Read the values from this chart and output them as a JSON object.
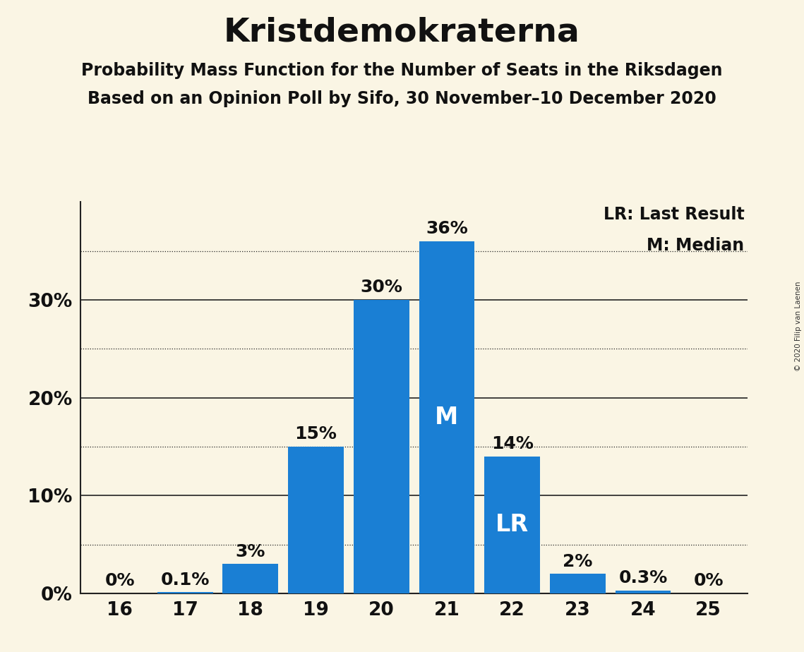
{
  "title": "Kristdemokraterna",
  "subtitle1": "Probability Mass Function for the Number of Seats in the Riksdagen",
  "subtitle2": "Based on an Opinion Poll by Sifo, 30 November–10 December 2020",
  "copyright": "© 2020 Filip van Laenen",
  "seats": [
    16,
    17,
    18,
    19,
    20,
    21,
    22,
    23,
    24,
    25
  ],
  "probabilities": [
    0.0,
    0.1,
    3.0,
    15.0,
    30.0,
    36.0,
    14.0,
    2.0,
    0.3,
    0.0
  ],
  "labels": [
    "0%",
    "0.1%",
    "3%",
    "15%",
    "30%",
    "36%",
    "14%",
    "2%",
    "0.3%",
    "0%"
  ],
  "bar_color": "#1a7fd4",
  "background_color": "#faf5e4",
  "label_color_inside": "#ffffff",
  "label_color_outside": "#111111",
  "median_seat": 21,
  "lr_seat": 22,
  "legend_lr": "LR: Last Result",
  "legend_m": "M: Median",
  "ylim": [
    0,
    40
  ],
  "solid_yticks": [
    10,
    20,
    30
  ],
  "dotted_yticks": [
    5,
    15,
    25,
    35
  ],
  "title_fontsize": 34,
  "subtitle_fontsize": 17,
  "axis_fontsize": 19,
  "bar_label_fontsize": 18,
  "inside_label_fontsize": 24,
  "legend_fontsize": 17
}
